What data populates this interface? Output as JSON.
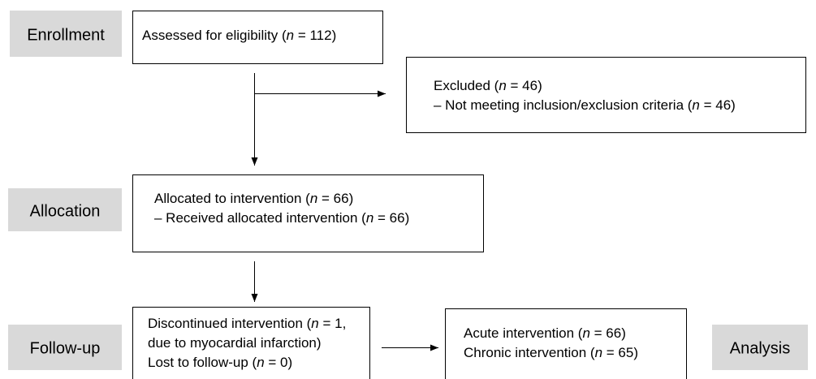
{
  "stages": [
    "Enrollment",
    "Allocation",
    "Follow-up",
    "Analysis"
  ],
  "boxes": [
    {
      "lines": [
        [
          "Assessed for eligibility (",
          "n",
          " = 112)"
        ]
      ]
    },
    {
      "lines": [
        [
          "Excluded (",
          "n",
          " = 46)"
        ],
        [
          "– Not meeting inclusion/exclusion criteria (",
          "n",
          " = 46)"
        ]
      ]
    },
    {
      "lines": [
        [
          "Allocated to intervention (",
          "n",
          " = 66)"
        ],
        [
          "– Received allocated intervention (",
          "n",
          " = 66)"
        ]
      ]
    },
    {
      "lines": [
        [
          "Discontinued intervention (",
          "n",
          " = 1,"
        ],
        [
          "due to myocardial infarction)"
        ],
        [
          "Lost to follow-up (",
          "n",
          " = 0)"
        ]
      ]
    },
    {
      "lines": [
        [
          "Acute intervention (",
          "n",
          " = 66)"
        ],
        [
          "Chronic intervention (",
          "n",
          " = 65)"
        ]
      ]
    }
  ]
}
